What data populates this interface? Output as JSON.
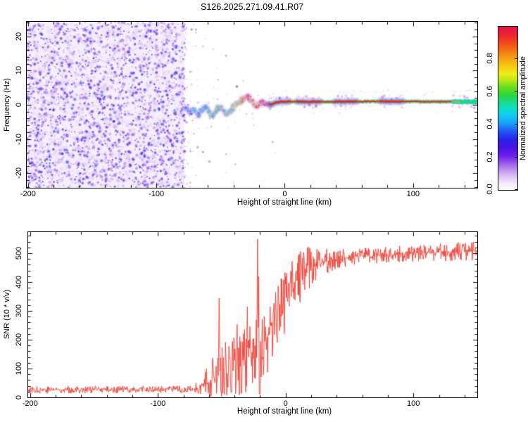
{
  "title": "S126.2025.271.09.41.R07",
  "axes": {
    "x_label": "Height of straight line (km)",
    "top_y_label": "Frequency (Hz)",
    "bottom_y_label": "SNR (10 * v/v)",
    "colorbar_label": "Normalized spectral amplitude"
  },
  "colors": {
    "background": "#ffffff",
    "frame": "#000000",
    "snr_line": "#ee3c31",
    "noise_tint": "#f5eefb"
  },
  "chart_data": [
    {
      "type": "heatmap",
      "title": "S126.2025.271.09.41.R07",
      "xlabel": "Height of straight line (km)",
      "ylabel": "Frequency (Hz)",
      "xlim": [
        -201,
        150
      ],
      "ylim": [
        -24.3,
        24.3
      ],
      "x_major_ticks": [
        -200,
        -100,
        0,
        100
      ],
      "x_minor_step": 20,
      "y_major_ticks": [
        -20,
        -10,
        0,
        10,
        20
      ],
      "y_minor_step": 2,
      "grid": false,
      "colorbar": {
        "label": "Normalized spectral amplitude",
        "range": [
          0,
          1
        ],
        "ticks": [
          0.0,
          0.2,
          0.4,
          0.6,
          0.8
        ],
        "stops": [
          [
            0.0,
            "#ffffff"
          ],
          [
            0.04,
            "#f3eafb"
          ],
          [
            0.08,
            "#dec6f4"
          ],
          [
            0.13,
            "#b988ea"
          ],
          [
            0.17,
            "#9152e9"
          ],
          [
            0.21,
            "#6d1de8"
          ],
          [
            0.26,
            "#4813e2"
          ],
          [
            0.31,
            "#2823e8"
          ],
          [
            0.36,
            "#1e5af2"
          ],
          [
            0.41,
            "#18a2f5"
          ],
          [
            0.46,
            "#0fcdf0"
          ],
          [
            0.5,
            "#0edec5"
          ],
          [
            0.54,
            "#1cda87"
          ],
          [
            0.58,
            "#2bd53b"
          ],
          [
            0.63,
            "#69dc1e"
          ],
          [
            0.67,
            "#b6e618"
          ],
          [
            0.71,
            "#eeee14"
          ],
          [
            0.77,
            "#f6c011"
          ],
          [
            0.83,
            "#f48b17"
          ],
          [
            0.89,
            "#f05315"
          ],
          [
            0.95,
            "#eb2430"
          ],
          [
            1.0,
            "#e60e4f"
          ]
        ]
      },
      "noise": {
        "x_range": [
          -200,
          -78
        ],
        "value_range": [
          0.03,
          0.32
        ],
        "base_tint": "#f5eefb",
        "sparse_decay_km": 15,
        "seed": 20250941
      },
      "trace_hz": [
        [
          -80,
          -1.6
        ],
        [
          -77,
          -0.6
        ],
        [
          -74,
          -2.6
        ],
        [
          -71,
          -1.2
        ],
        [
          -68,
          -3.0
        ],
        [
          -65,
          -1.6
        ],
        [
          -62,
          -0.2
        ],
        [
          -60,
          -1.4
        ],
        [
          -57,
          -3.4
        ],
        [
          -54,
          -2.2
        ],
        [
          -51,
          -0.4
        ],
        [
          -48,
          -1.8
        ],
        [
          -45,
          -3.0
        ],
        [
          -42,
          -1.4
        ],
        [
          -39,
          -0.2
        ],
        [
          -36,
          0.6
        ],
        [
          -33,
          1.5
        ],
        [
          -30,
          2.6
        ],
        [
          -28,
          2.3
        ],
        [
          -26,
          1.3
        ],
        [
          -24,
          0.4
        ],
        [
          -22,
          -0.2
        ],
        [
          -20,
          0.3
        ],
        [
          -17,
          0.9
        ],
        [
          -14,
          0.5
        ],
        [
          -11,
          0.0
        ],
        [
          -8,
          0.5
        ],
        [
          -4,
          0.8
        ],
        [
          0,
          0.9
        ],
        [
          40,
          0.9
        ],
        [
          80,
          1.0
        ],
        [
          120,
          0.9
        ],
        [
          150,
          0.9
        ]
      ],
      "trace_intensity": [
        [
          -80,
          0.35
        ],
        [
          -70,
          0.4
        ],
        [
          -60,
          0.46
        ],
        [
          -52,
          0.5
        ],
        [
          -45,
          0.53
        ],
        [
          -40,
          0.6
        ],
        [
          -36,
          0.68
        ],
        [
          -33,
          0.78
        ],
        [
          -30,
          0.92
        ],
        [
          -27,
          0.85
        ],
        [
          -24,
          0.8
        ],
        [
          -20,
          0.9
        ],
        [
          -15,
          0.95
        ],
        [
          -12,
          1.0
        ],
        [
          150,
          1.0
        ]
      ],
      "trace_fuzzy_segments": [
        [
          -14,
          4
        ],
        [
          9,
          28
        ],
        [
          39,
          56
        ],
        [
          74,
          92
        ]
      ],
      "trace_end_green_segment": [
        131,
        150
      ]
    },
    {
      "type": "line",
      "xlabel": "Height of straight line (km)",
      "ylabel": "SNR (10 * v/v)",
      "xlim": [
        -201.5,
        150
      ],
      "ylim": [
        0,
        573
      ],
      "x_major_ticks": [
        -200,
        -100,
        0,
        100
      ],
      "x_minor_step": 20,
      "y_major_ticks": [
        0,
        100,
        200,
        300,
        400,
        500
      ],
      "y_minor_step": 20,
      "grid": false,
      "line_color": "#ee3c31",
      "noise_floor": 27,
      "plateau_level": 500,
      "max_spike": 556,
      "mean_anchors": [
        [
          -200,
          27
        ],
        [
          -72,
          27
        ],
        [
          -64,
          42
        ],
        [
          -57,
          65
        ],
        [
          -50,
          85
        ],
        [
          -43,
          100
        ],
        [
          -36,
          115
        ],
        [
          -30,
          135
        ],
        [
          -26,
          155
        ],
        [
          -22,
          185
        ],
        [
          -19,
          150
        ],
        [
          -16,
          200
        ],
        [
          -13,
          230
        ],
        [
          -10,
          255
        ],
        [
          -7,
          280
        ],
        [
          -4,
          305
        ],
        [
          -1,
          330
        ],
        [
          2,
          355
        ],
        [
          5,
          375
        ],
        [
          8,
          395
        ],
        [
          12,
          420
        ],
        [
          16,
          440
        ],
        [
          20,
          455
        ],
        [
          25,
          465
        ],
        [
          30,
          472
        ],
        [
          40,
          480
        ],
        [
          55,
          488
        ],
        [
          70,
          492
        ],
        [
          85,
          495
        ],
        [
          100,
          498
        ],
        [
          115,
          502
        ],
        [
          130,
          505
        ],
        [
          150,
          508
        ]
      ],
      "noise_amp_anchors": [
        [
          -200,
          13
        ],
        [
          -74,
          13
        ],
        [
          -66,
          30
        ],
        [
          -58,
          75
        ],
        [
          -50,
          95
        ],
        [
          -42,
          100
        ],
        [
          -34,
          110
        ],
        [
          -26,
          130
        ],
        [
          -18,
          140
        ],
        [
          -10,
          130
        ],
        [
          -2,
          110
        ],
        [
          6,
          100
        ],
        [
          14,
          85
        ],
        [
          22,
          65
        ],
        [
          30,
          48
        ],
        [
          40,
          34
        ],
        [
          60,
          28
        ],
        [
          100,
          30
        ],
        [
          150,
          33
        ]
      ],
      "spikes": [
        [
          -52,
          362
        ],
        [
          -47,
          215
        ],
        [
          -44,
          185
        ],
        [
          -40,
          160
        ],
        [
          -38,
          312
        ],
        [
          -36,
          252
        ],
        [
          -33,
          205
        ],
        [
          -30,
          345
        ],
        [
          -28,
          262
        ],
        [
          -25,
          210
        ],
        [
          -22,
          556
        ],
        [
          -21,
          430
        ],
        [
          99,
          548
        ],
        [
          101,
          515
        ]
      ],
      "dips": [
        [
          -20.4,
          12
        ],
        [
          -34.5,
          15
        ],
        [
          -42.5,
          18
        ]
      ],
      "dropout": {
        "range": [
          -63,
          -16
        ],
        "p": 0.05,
        "level": 14
      },
      "seed": 77
    }
  ]
}
